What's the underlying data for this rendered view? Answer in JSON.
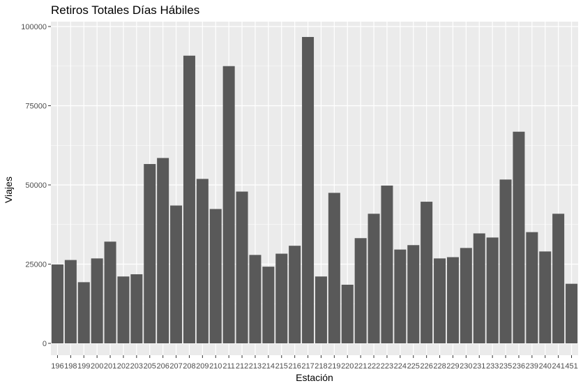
{
  "chart_data": {
    "type": "bar",
    "title": "Retiros Totales Días Hábiles",
    "xlabel": "Estación",
    "ylabel": "Viajes",
    "categories": [
      "196",
      "198",
      "199",
      "200",
      "201",
      "202",
      "203",
      "205",
      "206",
      "207",
      "208",
      "209",
      "210",
      "211",
      "212",
      "213",
      "214",
      "215",
      "216",
      "217",
      "218",
      "219",
      "220",
      "221",
      "222",
      "223",
      "224",
      "225",
      "226",
      "228",
      "229",
      "230",
      "231",
      "233",
      "235",
      "236",
      "239",
      "240",
      "241",
      "451"
    ],
    "values": [
      24900,
      26300,
      19300,
      26800,
      32100,
      21100,
      21800,
      56600,
      58500,
      43500,
      90800,
      51900,
      42400,
      87500,
      47900,
      27900,
      24200,
      28300,
      30800,
      96700,
      21100,
      47500,
      18500,
      33200,
      40900,
      49800,
      29600,
      31000,
      44700,
      26800,
      27200,
      30100,
      34700,
      33400,
      51700,
      66800,
      35100,
      29000,
      40900,
      18800
    ],
    "ylim": [
      0,
      102000
    ],
    "yticks": [
      0,
      25000,
      50000,
      75000,
      100000
    ],
    "ytick_labels": [
      "0",
      "25000",
      "50000",
      "75000",
      "100000"
    ],
    "bar_color": "#595959",
    "panel_color": "#ebebeb",
    "grid": true,
    "legend": "none"
  }
}
